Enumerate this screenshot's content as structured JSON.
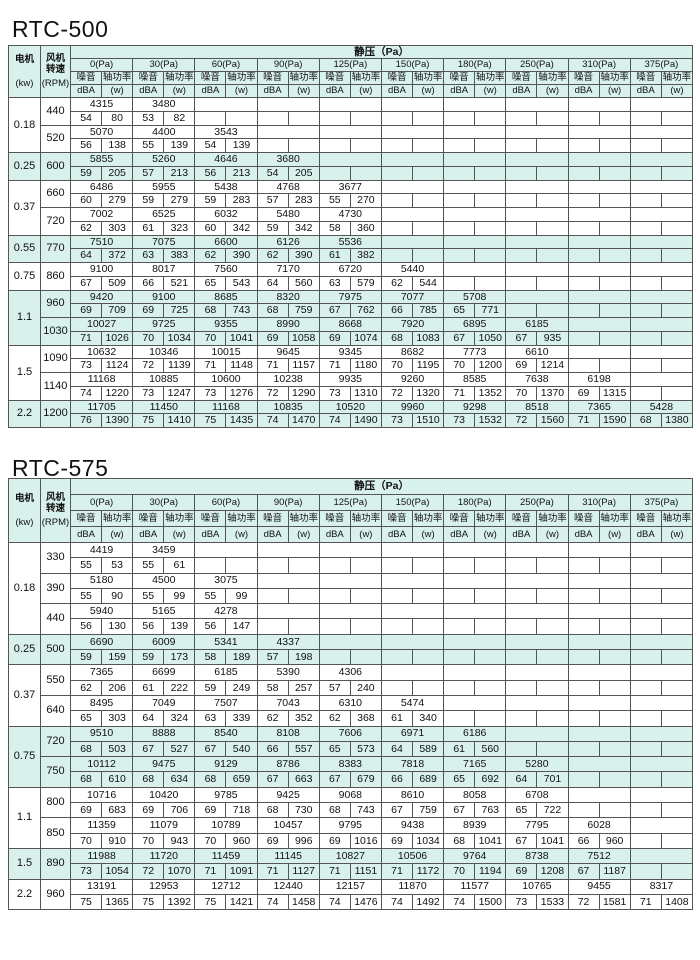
{
  "header_labels": {
    "motor": "电机",
    "motor_unit": "(kw)",
    "fan": "风机转速",
    "fan_unit": "(RPM)",
    "static_pressure": "静压（Pa）",
    "noise": "噪音",
    "shaft_power": "轴功率",
    "noise_unit": "dBA",
    "power_unit": "(w)"
  },
  "pressures": [
    "0(Pa)",
    "30(Pa)",
    "60(Pa)",
    "90(Pa)",
    "125(Pa)",
    "150(Pa)",
    "180(Pa)",
    "250(Pa)",
    "310(Pa)",
    "375(Pa)"
  ],
  "colors": {
    "shade": "#d8f1ed",
    "border": "#555555"
  },
  "tables": [
    {
      "title": "RTC-500",
      "groups": [
        {
          "kw": "0.18",
          "shaded": false,
          "rows": [
            {
              "rpm": "440",
              "air": [
                "4315",
                "3480"
              ],
              "dba": [
                "54",
                "53"
              ],
              "w": [
                "80",
                "82"
              ]
            },
            {
              "rpm": "520",
              "air": [
                "5070",
                "4400",
                "3543"
              ],
              "dba": [
                "56",
                "55",
                "54"
              ],
              "w": [
                "138",
                "139",
                "139"
              ]
            }
          ]
        },
        {
          "kw": "0.25",
          "shaded": true,
          "rows": [
            {
              "rpm": "600",
              "air": [
                "5855",
                "5260",
                "4646",
                "3680"
              ],
              "dba": [
                "59",
                "57",
                "56",
                "54"
              ],
              "w": [
                "205",
                "213",
                "213",
                "205"
              ]
            }
          ]
        },
        {
          "kw": "0.37",
          "shaded": false,
          "rows": [
            {
              "rpm": "660",
              "air": [
                "6486",
                "5955",
                "5438",
                "4768",
                "3677"
              ],
              "dba": [
                "60",
                "59",
                "59",
                "57",
                "55"
              ],
              "w": [
                "279",
                "279",
                "283",
                "283",
                "270"
              ]
            },
            {
              "rpm": "720",
              "air": [
                "7002",
                "6525",
                "6032",
                "5480",
                "4730"
              ],
              "dba": [
                "62",
                "61",
                "60",
                "59",
                "58"
              ],
              "w": [
                "303",
                "323",
                "342",
                "342",
                "360"
              ]
            }
          ]
        },
        {
          "kw": "0.55",
          "shaded": true,
          "rows": [
            {
              "rpm": "770",
              "air": [
                "7510",
                "7075",
                "6600",
                "6126",
                "5536"
              ],
              "dba": [
                "64",
                "63",
                "62",
                "62",
                "61"
              ],
              "w": [
                "372",
                "383",
                "390",
                "390",
                "382"
              ]
            }
          ]
        },
        {
          "kw": "0.75",
          "shaded": false,
          "rows": [
            {
              "rpm": "860",
              "air": [
                "9100",
                "8017",
                "7560",
                "7170",
                "6720",
                "5440"
              ],
              "dba": [
                "67",
                "66",
                "65",
                "64",
                "63",
                "62"
              ],
              "w": [
                "509",
                "521",
                "543",
                "560",
                "579",
                "544"
              ]
            }
          ]
        },
        {
          "kw": "1.1",
          "shaded": true,
          "rows": [
            {
              "rpm": "960",
              "air": [
                "9420",
                "9100",
                "8685",
                "8320",
                "7975",
                "7077",
                "5708"
              ],
              "dba": [
                "69",
                "69",
                "68",
                "68",
                "67",
                "66",
                "65"
              ],
              "w": [
                "709",
                "725",
                "743",
                "759",
                "762",
                "785",
                "771"
              ]
            },
            {
              "rpm": "1030",
              "air": [
                "10027",
                "9725",
                "9355",
                "8990",
                "8668",
                "7920",
                "6895",
                "6185"
              ],
              "dba": [
                "71",
                "70",
                "70",
                "69",
                "69",
                "68",
                "67",
                "67"
              ],
              "w": [
                "1026",
                "1034",
                "1041",
                "1058",
                "1074",
                "1083",
                "1050",
                "935"
              ]
            }
          ]
        },
        {
          "kw": "1.5",
          "shaded": false,
          "rows": [
            {
              "rpm": "1090",
              "air": [
                "10632",
                "10346",
                "10015",
                "9645",
                "9345",
                "8682",
                "7773",
                "6610"
              ],
              "dba": [
                "73",
                "72",
                "71",
                "71",
                "71",
                "70",
                "70",
                "69"
              ],
              "w": [
                "1124",
                "1139",
                "1148",
                "1157",
                "1180",
                "1195",
                "1200",
                "1214"
              ]
            },
            {
              "rpm": "1140",
              "air": [
                "11168",
                "10885",
                "10600",
                "10238",
                "9935",
                "9260",
                "8585",
                "7638",
                "6198"
              ],
              "dba": [
                "74",
                "73",
                "73",
                "72",
                "73",
                "72",
                "71",
                "70",
                "69"
              ],
              "w": [
                "1220",
                "1247",
                "1276",
                "1290",
                "1310",
                "1320",
                "1352",
                "1370",
                "1315"
              ]
            }
          ]
        },
        {
          "kw": "2.2",
          "shaded": true,
          "rows": [
            {
              "rpm": "1200",
              "air": [
                "11705",
                "11450",
                "11168",
                "10835",
                "10520",
                "9960",
                "9298",
                "8518",
                "7365",
                "5428"
              ],
              "dba": [
                "76",
                "75",
                "75",
                "74",
                "74",
                "73",
                "73",
                "72",
                "71",
                "68"
              ],
              "w": [
                "1390",
                "1410",
                "1435",
                "1470",
                "1490",
                "1510",
                "1532",
                "1560",
                "1590",
                "1380"
              ]
            }
          ]
        }
      ]
    },
    {
      "title": "RTC-575",
      "groups": [
        {
          "kw": "0.18",
          "shaded": false,
          "rows": [
            {
              "rpm": "330",
              "air": [
                "4419",
                "3459"
              ],
              "dba": [
                "55",
                "55"
              ],
              "w": [
                "53",
                "61"
              ]
            },
            {
              "rpm": "390",
              "air": [
                "5180",
                "4500",
                "3075"
              ],
              "dba": [
                "55",
                "55",
                "55"
              ],
              "w": [
                "90",
                "99",
                "99"
              ]
            },
            {
              "rpm": "440",
              "air": [
                "5940",
                "5165",
                "4278"
              ],
              "dba": [
                "56",
                "56",
                "56"
              ],
              "w": [
                "130",
                "139",
                "147"
              ]
            }
          ]
        },
        {
          "kw": "0.25",
          "shaded": true,
          "rows": [
            {
              "rpm": "500",
              "air": [
                "6690",
                "6009",
                "5341",
                "4337"
              ],
              "dba": [
                "59",
                "59",
                "58",
                "57"
              ],
              "w": [
                "159",
                "173",
                "189",
                "198"
              ]
            }
          ]
        },
        {
          "kw": "0.37",
          "shaded": false,
          "rows": [
            {
              "rpm": "550",
              "air": [
                "7365",
                "6699",
                "6185",
                "5390",
                "4306"
              ],
              "dba": [
                "62",
                "61",
                "59",
                "58",
                "57"
              ],
              "w": [
                "206",
                "222",
                "249",
                "257",
                "240"
              ]
            },
            {
              "rpm": "640",
              "air": [
                "8495",
                "7049",
                "7507",
                "7043",
                "6310",
                "5474"
              ],
              "dba": [
                "65",
                "64",
                "63",
                "62",
                "62",
                "61"
              ],
              "w": [
                "303",
                "324",
                "339",
                "352",
                "368",
                "340"
              ]
            }
          ]
        },
        {
          "kw": "0.75",
          "shaded": true,
          "rows": [
            {
              "rpm": "720",
              "air": [
                "9510",
                "8888",
                "8540",
                "8108",
                "7606",
                "6971",
                "6186"
              ],
              "dba": [
                "68",
                "67",
                "67",
                "66",
                "65",
                "64",
                "61"
              ],
              "w": [
                "503",
                "527",
                "540",
                "557",
                "573",
                "589",
                "560"
              ]
            },
            {
              "rpm": "750",
              "air": [
                "10112",
                "9475",
                "9129",
                "8786",
                "8383",
                "7818",
                "7165",
                "5280"
              ],
              "dba": [
                "68",
                "68",
                "68",
                "67",
                "67",
                "66",
                "65",
                "64"
              ],
              "w": [
                "610",
                "634",
                "659",
                "663",
                "679",
                "689",
                "692",
                "701"
              ]
            }
          ]
        },
        {
          "kw": "1.1",
          "shaded": false,
          "rows": [
            {
              "rpm": "800",
              "air": [
                "10716",
                "10420",
                "9785",
                "9425",
                "9068",
                "8610",
                "8058",
                "6708"
              ],
              "dba": [
                "69",
                "69",
                "69",
                "68",
                "68",
                "67",
                "67",
                "65"
              ],
              "w": [
                "683",
                "706",
                "718",
                "730",
                "743",
                "759",
                "763",
                "722"
              ]
            },
            {
              "rpm": "850",
              "air": [
                "11359",
                "11079",
                "10789",
                "10457",
                "9795",
                "9438",
                "8939",
                "7795",
                "6028"
              ],
              "dba": [
                "70",
                "70",
                "70",
                "69",
                "69",
                "69",
                "68",
                "67",
                "66"
              ],
              "w": [
                "910",
                "943",
                "960",
                "996",
                "1016",
                "1034",
                "1041",
                "1041",
                "960"
              ]
            }
          ]
        },
        {
          "kw": "1.5",
          "shaded": true,
          "rows": [
            {
              "rpm": "890",
              "air": [
                "11988",
                "11720",
                "11459",
                "11145",
                "10827",
                "10506",
                "9764",
                "8738",
                "7512"
              ],
              "dba": [
                "73",
                "72",
                "71",
                "71",
                "71",
                "71",
                "70",
                "69",
                "67"
              ],
              "w": [
                "1054",
                "1070",
                "1091",
                "1127",
                "1151",
                "1172",
                "1194",
                "1208",
                "1187"
              ]
            }
          ]
        },
        {
          "kw": "2.2",
          "shaded": false,
          "rows": [
            {
              "rpm": "960",
              "air": [
                "13191",
                "12953",
                "12712",
                "12440",
                "12157",
                "11870",
                "11577",
                "10765",
                "9455",
                "8317"
              ],
              "dba": [
                "75",
                "75",
                "75",
                "74",
                "74",
                "74",
                "74",
                "73",
                "72",
                "71"
              ],
              "w": [
                "1365",
                "1392",
                "1421",
                "1458",
                "1476",
                "1492",
                "1500",
                "1533",
                "1581",
                "1408"
              ]
            }
          ]
        }
      ]
    }
  ]
}
